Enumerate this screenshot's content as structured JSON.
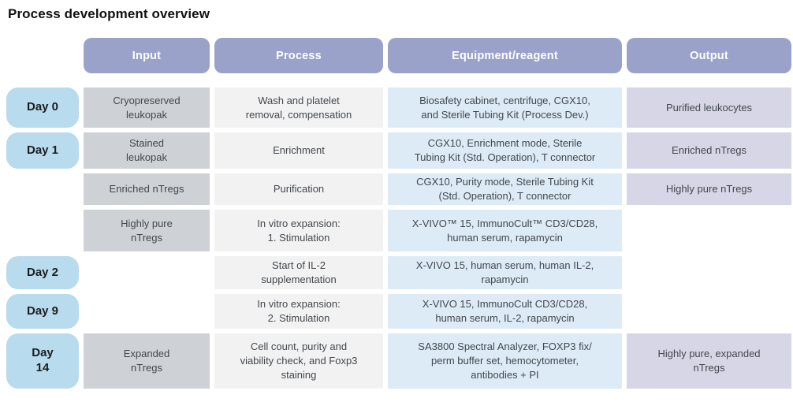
{
  "title": "Process development overview",
  "columns": [
    "Input",
    "Process",
    "Equipment/reagent",
    "Output"
  ],
  "rows": [
    {
      "day": "Day 0",
      "input": "Cryopreserved\nleukopak",
      "process": "Wash and platelet\nremoval, compensation",
      "equipment": "Biosafety cabinet, centrifuge, CGX10,\nand Sterile Tubing Kit (Process Dev.)",
      "output": "Purified leukocytes"
    },
    {
      "day": "Day 1",
      "input": "Stained\nleukopak",
      "process": "Enrichment",
      "equipment": "CGX10, Enrichment mode, Sterile\nTubing Kit (Std. Operation), T connector",
      "output": "Enriched nTregs"
    },
    {
      "day": "",
      "input": "Enriched nTregs",
      "process": "Purification",
      "equipment": "CGX10, Purity mode, Sterile Tubing Kit\n(Std. Operation), T connector",
      "output": "Highly pure nTregs"
    },
    {
      "day": "",
      "input": "Highly pure\nnTregs",
      "process": "In vitro expansion:\n1. Stimulation",
      "equipment": "X-VIVO™ 15, ImmunoCult™ CD3/CD28,\nhuman serum, rapamycin",
      "output": ""
    },
    {
      "day": "Day 2",
      "input": "",
      "process": "Start of IL-2\nsupplementation",
      "equipment": "X-VIVO 15, human serum, human IL-2,\nrapamycin",
      "output": ""
    },
    {
      "day": "Day 9",
      "input": "",
      "process": "In vitro expansion:\n2. Stimulation",
      "equipment": "X-VIVO 15, ImmunoCult CD3/CD28,\nhuman serum, IL-2, rapamycin",
      "output": ""
    },
    {
      "day": "Day\n14",
      "input": "Expanded\nnTregs",
      "process": "Cell count, purity and\nviability check, and Foxp3\nstaining",
      "equipment": "SA3800 Spectral Analyzer, FOXP3 fix/\nperm buffer set, hemocytometer,\nantibodies + PI",
      "output": "Highly pure, expanded\nnTregs"
    }
  ],
  "colors": {
    "header-bg": "#9aa2c9",
    "day-bg": "#b8dbed",
    "input-bg": "#ced2d6",
    "process-bg": "#f2f2f3",
    "equipment-bg": "#dcebf6",
    "output-bg": "#d7d6e6",
    "cell-text": "#43484d",
    "day-text": "#1b1d1f",
    "title-text": "#111111"
  }
}
